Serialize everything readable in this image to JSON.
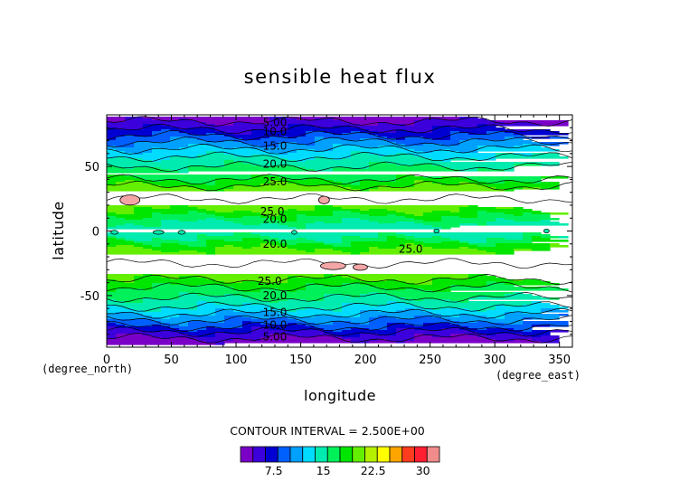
{
  "chart_data": {
    "type": "heatmap",
    "title": "sensible heat flux",
    "xlabel": "longitude",
    "ylabel": "latitude",
    "x_unit": "(degree_east)",
    "y_unit": "(degree_north)",
    "xlim": [
      0,
      360
    ],
    "ylim": [
      -90,
      90
    ],
    "xticks": [
      0,
      50,
      100,
      150,
      200,
      250,
      300,
      350
    ],
    "yticks": [
      -50,
      0,
      50
    ],
    "contour_interval_text": "CONTOUR INTERVAL = 2.500E+00",
    "colorbar": {
      "min": 2.5,
      "max": 32.5,
      "step": 2.5,
      "tick_labels": [
        "7.5",
        "15",
        "22.5",
        "30"
      ],
      "colors": [
        "#7a00c8",
        "#3c00dc",
        "#0000d2",
        "#0060ff",
        "#00a0ff",
        "#00dcff",
        "#00ebaf",
        "#00f05a",
        "#00e600",
        "#64ee00",
        "#b4f000",
        "#ffff00",
        "#ffa500",
        "#ff3c1e",
        "#ff1e32",
        "#f08c8c"
      ]
    },
    "zonal_profile": {
      "lat": [
        -90,
        -85,
        -80,
        -75,
        -70,
        -65,
        -60,
        -55,
        -50,
        -45,
        -40,
        -35,
        -30,
        -25,
        -20,
        -15,
        -10,
        -5,
        0,
        5,
        10,
        15,
        20,
        25,
        30,
        35,
        40,
        45,
        50,
        55,
        60,
        65,
        70,
        75,
        80,
        85,
        90
      ],
      "value": [
        3,
        4,
        6.5,
        9.5,
        12,
        14.5,
        17,
        19,
        20.5,
        22,
        24,
        26,
        27,
        27.5,
        27,
        25.5,
        23.5,
        20,
        19,
        19.5,
        21.5,
        24.5,
        26.5,
        27.5,
        27,
        25,
        22.5,
        21,
        20,
        18.5,
        16.5,
        14.5,
        12,
        9.5,
        7,
        5,
        3.5
      ]
    },
    "contour_labels": [
      {
        "text": "5.00",
        "lon": 130,
        "lat": 84
      },
      {
        "text": "10.0",
        "lon": 130,
        "lat": 77
      },
      {
        "text": "15.0",
        "lon": 130,
        "lat": 66
      },
      {
        "text": "20.0",
        "lon": 130,
        "lat": 52
      },
      {
        "text": "25.0",
        "lon": 130,
        "lat": 38
      },
      {
        "text": "25.0",
        "lon": 128,
        "lat": 15
      },
      {
        "text": "20.0",
        "lon": 130,
        "lat": 9
      },
      {
        "text": "20.0",
        "lon": 130,
        "lat": -10
      },
      {
        "text": "25.0",
        "lon": 235,
        "lat": -14
      },
      {
        "text": "25.0",
        "lon": 126,
        "lat": -39
      },
      {
        "text": "20.0",
        "lon": 130,
        "lat": -50
      },
      {
        "text": "15.0",
        "lon": 130,
        "lat": -63
      },
      {
        "text": "10.0",
        "lon": 130,
        "lat": -73
      },
      {
        "text": "5.00",
        "lon": 130,
        "lat": -82
      }
    ]
  }
}
